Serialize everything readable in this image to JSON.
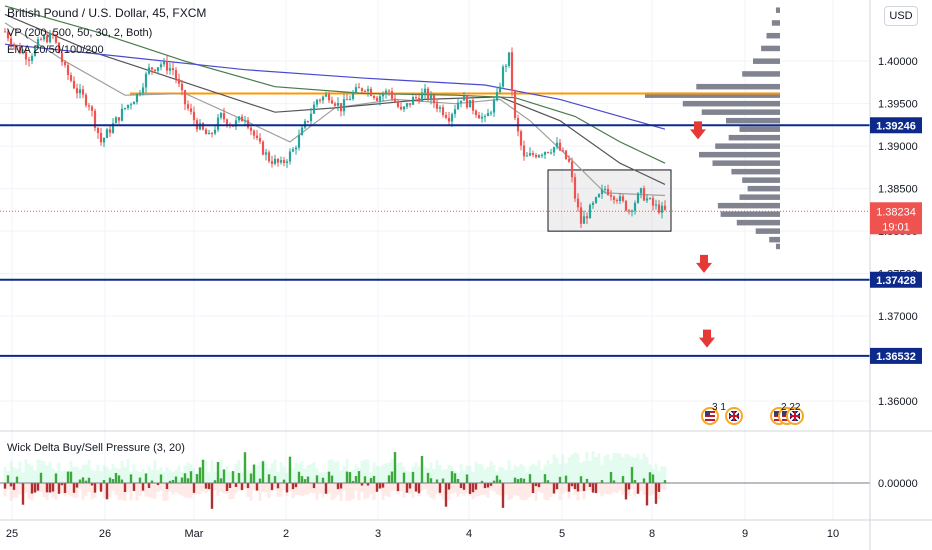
{
  "legend": {
    "title": "British Pound / U.S. Dollar, 45, FXCM",
    "vp": "VP (200, 500, 50, 30, 2, Both)",
    "ema": "EMA 20/50/100/200",
    "indicator": "Wick Delta Buy/Sell Pressure (3, 20)"
  },
  "currency_button": "USD",
  "chart_data": {
    "type": "candlestick",
    "x_ticks": [
      "25",
      "26",
      "Mar",
      "2",
      "3",
      "4",
      "5",
      "8",
      "9",
      "10"
    ],
    "y_ticks": [
      "1.40000",
      "1.39500",
      "1.39000",
      "1.38500",
      "1.38000",
      "1.37500",
      "1.37000",
      "1.36500",
      "1.36000"
    ],
    "ylim": [
      1.3566,
      1.4072
    ],
    "horizontal_levels": [
      {
        "label": "1.39246",
        "value": 1.39246,
        "color": "#0d2a8a"
      },
      {
        "label": "1.37428",
        "value": 1.37428,
        "color": "#0d2a8a"
      },
      {
        "label": "1.36532",
        "value": 1.36532,
        "color": "#0d2a8a"
      }
    ],
    "poc_level": 1.3962,
    "current_price": {
      "label": "1.38234",
      "value": 1.38234,
      "countdown": "19:01"
    },
    "close_path": [
      [
        0,
        1.4035
      ],
      [
        4,
        1.4015
      ],
      [
        8,
        1.4005
      ],
      [
        12,
        1.4025
      ],
      [
        16,
        1.403
      ],
      [
        20,
        1.399
      ],
      [
        24,
        1.3965
      ],
      [
        28,
        1.395
      ],
      [
        32,
        1.3905
      ],
      [
        36,
        1.3925
      ],
      [
        40,
        1.3945
      ],
      [
        44,
        1.396
      ],
      [
        48,
        1.399
      ],
      [
        52,
        1.3997
      ],
      [
        56,
        1.399
      ],
      [
        60,
        1.395
      ],
      [
        64,
        1.3925
      ],
      [
        68,
        1.391
      ],
      [
        72,
        1.3935
      ],
      [
        76,
        1.3925
      ],
      [
        80,
        1.3935
      ],
      [
        84,
        1.3905
      ],
      [
        88,
        1.3885
      ],
      [
        92,
        1.3878
      ],
      [
        96,
        1.3895
      ],
      [
        100,
        1.3925
      ],
      [
        104,
        1.3955
      ],
      [
        108,
        1.396
      ],
      [
        112,
        1.3945
      ],
      [
        116,
        1.3962
      ],
      [
        120,
        1.397
      ],
      [
        124,
        1.3958
      ],
      [
        128,
        1.3965
      ],
      [
        132,
        1.394
      ],
      [
        136,
        1.3955
      ],
      [
        140,
        1.3962
      ],
      [
        144,
        1.3948
      ],
      [
        148,
        1.3935
      ],
      [
        152,
        1.3958
      ],
      [
        156,
        1.3945
      ],
      [
        160,
        1.393
      ],
      [
        164,
        1.3958
      ],
      [
        166,
        1.399
      ],
      [
        168,
        1.4005
      ],
      [
        170,
        1.393
      ],
      [
        173,
        1.3885
      ],
      [
        176,
        1.389
      ],
      [
        180,
        1.3895
      ],
      [
        184,
        1.39
      ],
      [
        188,
        1.388
      ],
      [
        190,
        1.384
      ],
      [
        192,
        1.381
      ],
      [
        196,
        1.383
      ],
      [
        200,
        1.385
      ],
      [
        204,
        1.384
      ],
      [
        208,
        1.3825
      ],
      [
        212,
        1.3845
      ],
      [
        216,
        1.383
      ],
      [
        220,
        1.3823
      ]
    ],
    "ema_lines": [
      {
        "name": "EMA 20",
        "color": "#a0a0a0",
        "points": [
          [
            0,
            1.4045
          ],
          [
            20,
            1.4
          ],
          [
            40,
            1.396
          ],
          [
            60,
            1.3962
          ],
          [
            80,
            1.393
          ],
          [
            95,
            1.3905
          ],
          [
            110,
            1.3945
          ],
          [
            130,
            1.3955
          ],
          [
            150,
            1.395
          ],
          [
            165,
            1.3955
          ],
          [
            175,
            1.393
          ],
          [
            190,
            1.388
          ],
          [
            200,
            1.3845
          ],
          [
            220,
            1.3842
          ]
        ]
      },
      {
        "name": "EMA 50",
        "color": "#555555",
        "points": [
          [
            0,
            1.4055
          ],
          [
            30,
            1.401
          ],
          [
            60,
            1.3975
          ],
          [
            90,
            1.394
          ],
          [
            110,
            1.3945
          ],
          [
            140,
            1.3955
          ],
          [
            165,
            1.3958
          ],
          [
            185,
            1.393
          ],
          [
            205,
            1.388
          ],
          [
            220,
            1.3855
          ]
        ]
      },
      {
        "name": "EMA 100",
        "color": "#4a7a4a",
        "points": [
          [
            0,
            1.4065
          ],
          [
            30,
            1.4035
          ],
          [
            60,
            1.4
          ],
          [
            90,
            1.397
          ],
          [
            120,
            1.3962
          ],
          [
            150,
            1.396
          ],
          [
            170,
            1.3957
          ],
          [
            190,
            1.3935
          ],
          [
            205,
            1.3905
          ],
          [
            220,
            1.388
          ]
        ]
      },
      {
        "name": "EMA 200",
        "color": "#4a4ad0",
        "points": [
          [
            0,
            1.402
          ],
          [
            40,
            1.4005
          ],
          [
            80,
            1.399
          ],
          [
            120,
            1.398
          ],
          [
            160,
            1.3972
          ],
          [
            185,
            1.3955
          ],
          [
            205,
            1.3935
          ],
          [
            220,
            1.392
          ]
        ]
      }
    ],
    "volume_profile": {
      "color": "#6b6f7c",
      "rows": [
        [
          1.406,
          3
        ],
        [
          1.4045,
          6
        ],
        [
          1.403,
          10
        ],
        [
          1.4015,
          14
        ],
        [
          1.4,
          20
        ],
        [
          1.3985,
          28
        ],
        [
          1.397,
          62
        ],
        [
          1.396,
          100
        ],
        [
          1.395,
          72
        ],
        [
          1.394,
          58
        ],
        [
          1.393,
          40
        ],
        [
          1.392,
          30
        ],
        [
          1.391,
          38
        ],
        [
          1.39,
          48
        ],
        [
          1.389,
          60
        ],
        [
          1.388,
          50
        ],
        [
          1.387,
          36
        ],
        [
          1.386,
          28
        ],
        [
          1.385,
          24
        ],
        [
          1.384,
          30
        ],
        [
          1.383,
          46
        ],
        [
          1.382,
          44
        ],
        [
          1.381,
          32
        ],
        [
          1.38,
          18
        ],
        [
          1.379,
          8
        ],
        [
          1.3782,
          3
        ]
      ]
    },
    "range_box": {
      "from": 181,
      "to": 222,
      "high": 1.3872,
      "low": 1.38
    },
    "down_arrows": [
      {
        "x": 231,
        "price": 1.3915
      },
      {
        "x": 233,
        "price": 1.3758
      },
      {
        "x": 234,
        "price": 1.367
      }
    ],
    "events": [
      {
        "x": 235,
        "label": "3 1",
        "flags": [
          "us"
        ]
      },
      {
        "x": 243,
        "label": "",
        "flags": [
          "uk"
        ]
      },
      {
        "x": 258,
        "label": "2 22",
        "flags": [
          "us",
          "us",
          "uk"
        ]
      }
    ],
    "indicator": {
      "title": "Wick Delta Buy/Sell Pressure (3, 20)",
      "zero_label": "0.00000",
      "up_color": "#3aaa3a",
      "down_color": "#b03030"
    }
  }
}
